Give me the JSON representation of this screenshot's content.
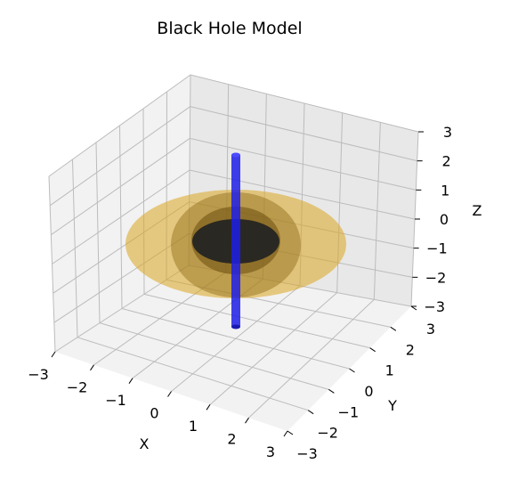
{
  "chart_data": {
    "type": "3d-surface",
    "title": "Black Hole Model",
    "xlabel": "X",
    "ylabel": "Y",
    "zlabel": "Z",
    "xlim": [
      -3,
      3
    ],
    "ylim": [
      -3,
      3
    ],
    "zlim": [
      -3,
      3
    ],
    "x_ticks": [
      "−3",
      "−2",
      "−1",
      "0",
      "1",
      "2",
      "3"
    ],
    "y_ticks": [
      "−3",
      "−2",
      "−1",
      "0",
      "1",
      "2",
      "3"
    ],
    "z_ticks": [
      "−3",
      "−2",
      "−1",
      "0",
      "1",
      "2",
      "3"
    ],
    "grid": true,
    "objects": [
      {
        "name": "accretion disk",
        "shape": "flat ellipse",
        "radius": 3,
        "color": "#daa520",
        "alpha": 0.55
      },
      {
        "name": "photon sphere",
        "shape": "sphere",
        "radius": 1.5,
        "color": "#8b6914",
        "alpha": 0.5
      },
      {
        "name": "event horizon",
        "shape": "sphere",
        "radius": 1,
        "color": "#1a1a1a",
        "alpha": 0.9
      },
      {
        "name": "jet",
        "shape": "cylinder",
        "radius": 0.1,
        "z_range": [
          -2.5,
          2.5
        ],
        "color": "#1f1fe6",
        "alpha": 0.8
      }
    ]
  }
}
